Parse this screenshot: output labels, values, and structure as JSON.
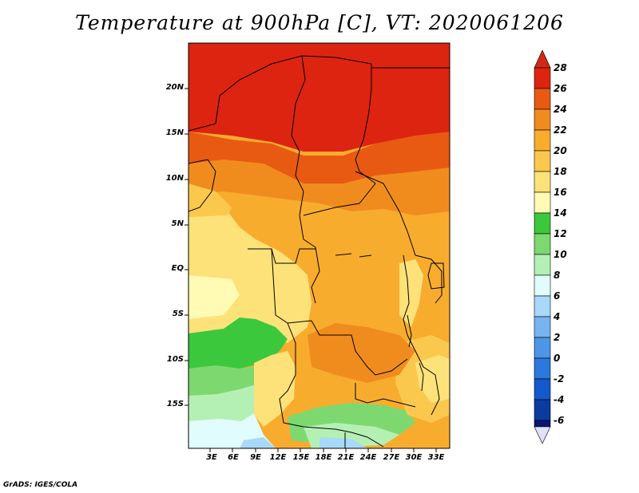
{
  "title": "Temperature at 900hPa [C], VT: 2020061206",
  "credit": "GrADS: IGES/COLA",
  "map": {
    "lat_labels": [
      "20N",
      "15N",
      "10N",
      "5N",
      "EQ",
      "5S",
      "10S",
      "15S"
    ],
    "lon_labels": [
      "3E",
      "6E",
      "9E",
      "12E",
      "15E",
      "18E",
      "21E",
      "24E",
      "27E",
      "30E",
      "33E"
    ]
  },
  "colorbar": {
    "labels": [
      "28",
      "26",
      "24",
      "22",
      "20",
      "18",
      "16",
      "14",
      "12",
      "10",
      "8",
      "6",
      "4",
      "2",
      "0",
      "-2",
      "-4",
      "-6"
    ],
    "colors": {
      "c26_28": "#dc2410",
      "c24_26": "#e85a12",
      "c22_24": "#f08c1e",
      "c20_22": "#f8ac2e",
      "c18_20": "#fbc84e",
      "c16_18": "#fde27a",
      "c14_16": "#fffab4",
      "c12_14": "#3cc83c",
      "c10_12": "#7ed870",
      "c8_10": "#b4f0b4",
      "c6_8": "#e0fcfc",
      "c4_6": "#a8d8fa",
      "c2_4": "#78b4f0",
      "c0_2": "#4c96e6",
      "cm2_0": "#2c78dc",
      "cm4_m2": "#145acc",
      "cm6_m4": "#0a3ca0",
      "cm6_low": "#0a1474",
      "over": "#d22814",
      "under": "#e0e0f8"
    }
  }
}
